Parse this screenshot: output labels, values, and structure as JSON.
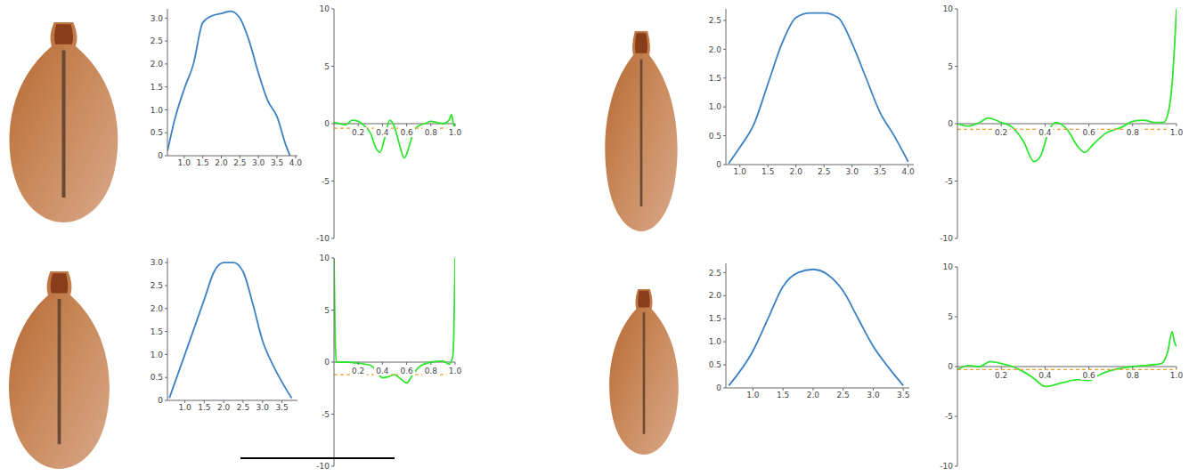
{
  "chart_data": [
    {
      "type": "line",
      "x": [
        0.55,
        0.75,
        1.0,
        1.25,
        1.5,
        1.75,
        2.0,
        2.25,
        2.5,
        2.75,
        3.0,
        3.25,
        3.5,
        3.75,
        3.85
      ],
      "series": [
        {
          "color": "#3a80c4",
          "values": [
            0.1,
            0.8,
            1.45,
            2.0,
            2.9,
            3.05,
            3.1,
            3.15,
            3.0,
            2.5,
            1.8,
            1.2,
            0.85,
            0.2,
            0.0
          ]
        }
      ],
      "xlim": [
        0.55,
        4.05
      ],
      "ylim": [
        0,
        3.2
      ],
      "xticks": [
        {
          "value": 1,
          "label": "1.0"
        },
        {
          "value": 1.5,
          "label": "1.5"
        },
        {
          "value": 2,
          "label": "2.0"
        },
        {
          "value": 2.5,
          "label": "2.5"
        },
        {
          "value": 3,
          "label": "3.0"
        },
        {
          "value": 3.5,
          "label": "3.5"
        },
        {
          "value": 4,
          "label": "4.0"
        }
      ],
      "yticks": [
        0,
        {
          "value": 0.5,
          "label": "0.5"
        },
        {
          "value": 1,
          "label": "1.0"
        },
        {
          "value": 1.5,
          "label": "1.5"
        },
        {
          "value": 2,
          "label": "2.0"
        },
        {
          "value": 2.5,
          "label": "2.5"
        },
        {
          "value": 3,
          "label": "3.0"
        }
      ]
    },
    {
      "type": "line",
      "x": [
        0,
        0.05,
        0.1,
        0.15,
        0.2,
        0.25,
        0.3,
        0.35,
        0.38,
        0.42,
        0.46,
        0.5,
        0.54,
        0.58,
        0.62,
        0.66,
        0.7,
        0.75,
        0.8,
        0.85,
        0.9,
        0.95,
        0.97,
        0.99,
        1.0
      ],
      "series": [
        {
          "color": "#2ee62e",
          "values": [
            0.1,
            0,
            -0.1,
            0.3,
            0.2,
            -0.2,
            -0.8,
            -2.2,
            -2.5,
            -1.2,
            0.3,
            -0.3,
            -1.8,
            -3.0,
            -2.0,
            -0.6,
            -0.2,
            0,
            0.2,
            0.1,
            0,
            0.3,
            0.8,
            -0.2,
            0
          ]
        },
        {
          "color": "#f0a030",
          "line_style": "dashed",
          "values": [
            -0.4,
            -0.4,
            -0.4,
            -0.4,
            -0.4,
            -0.4,
            -0.4,
            -0.4,
            -0.4,
            -0.4,
            -0.4,
            -0.4,
            -0.4,
            -0.4,
            -0.4,
            -0.4,
            -0.4,
            -0.4,
            -0.4,
            -0.4,
            -0.4,
            -0.4,
            -0.4,
            -0.4,
            -0.4
          ]
        }
      ],
      "xlim": [
        0,
        1
      ],
      "ylim": [
        -10,
        10
      ],
      "xticks": [
        0.2,
        0.4,
        0.6,
        0.8,
        {
          "value": 1,
          "label": "1.0"
        }
      ],
      "yticks": [
        -10,
        -5,
        0,
        5,
        10
      ]
    },
    {
      "type": "line",
      "x": [
        0.8,
        1.0,
        1.25,
        1.5,
        1.75,
        2.0,
        2.25,
        2.5,
        2.75,
        3.0,
        3.25,
        3.5,
        3.75,
        4.0
      ],
      "series": [
        {
          "color": "#3a80c4",
          "values": [
            0.02,
            0.3,
            0.7,
            1.4,
            2.1,
            2.55,
            2.63,
            2.63,
            2.55,
            2.1,
            1.5,
            0.9,
            0.5,
            0.05
          ]
        }
      ],
      "xlim": [
        0.75,
        4.1
      ],
      "ylim": [
        0,
        2.7
      ],
      "xticks": [
        {
          "value": 1,
          "label": "1.0"
        },
        {
          "value": 1.5,
          "label": "1.5"
        },
        {
          "value": 2,
          "label": "2.0"
        },
        {
          "value": 2.5,
          "label": "2.5"
        },
        {
          "value": 3,
          "label": "3.0"
        },
        {
          "value": 3.5,
          "label": "3.5"
        },
        {
          "value": 4,
          "label": "4.0"
        }
      ],
      "yticks": [
        0,
        {
          "value": 0.5,
          "label": "0.5"
        },
        {
          "value": 1,
          "label": "1.0"
        },
        {
          "value": 1.5,
          "label": "1.5"
        },
        {
          "value": 2,
          "label": "2.0"
        },
        {
          "value": 2.5,
          "label": "2.5"
        }
      ]
    },
    {
      "type": "line",
      "x": [
        0,
        0.05,
        0.1,
        0.14,
        0.2,
        0.25,
        0.3,
        0.35,
        0.38,
        0.42,
        0.45,
        0.5,
        0.55,
        0.58,
        0.62,
        0.68,
        0.75,
        0.8,
        0.85,
        0.9,
        0.94,
        0.96,
        0.98,
        1.0
      ],
      "series": [
        {
          "color": "#2ee62e",
          "values": [
            0,
            -0.2,
            0.1,
            0.5,
            0.1,
            -0.3,
            -1.5,
            -3.3,
            -2.8,
            -0.5,
            0.1,
            -0.5,
            -2.0,
            -2.5,
            -1.8,
            -0.8,
            -0.3,
            0.2,
            0.3,
            0.1,
            0.1,
            0.8,
            3.5,
            10
          ]
        },
        {
          "color": "#f0a030",
          "line_style": "dashed",
          "values": [
            -0.5,
            -0.5,
            -0.5,
            -0.5,
            -0.5,
            -0.5,
            -0.5,
            -0.5,
            -0.5,
            -0.5,
            -0.5,
            -0.5,
            -0.5,
            -0.5,
            -0.5,
            -0.5,
            -0.5,
            -0.5,
            -0.5,
            -0.5,
            -0.5,
            -0.5,
            -0.5,
            -0.5
          ]
        }
      ],
      "xlim": [
        0,
        1
      ],
      "ylim": [
        -10,
        10
      ],
      "xticks": [
        0.2,
        0.4,
        0.6,
        0.8,
        {
          "value": 1,
          "label": "1.0"
        }
      ],
      "yticks": [
        -10,
        -5,
        0,
        5,
        10
      ]
    },
    {
      "type": "line",
      "x": [
        0.6,
        1.0,
        1.5,
        1.75,
        2.0,
        2.25,
        2.5,
        2.75,
        3.0,
        3.25,
        3.5,
        3.75
      ],
      "series": [
        {
          "color": "#3a80c4",
          "values": [
            0.05,
            1.0,
            2.2,
            2.8,
            3.0,
            3.0,
            2.8,
            2.1,
            1.3,
            0.8,
            0.4,
            0.05
          ]
        }
      ],
      "xlim": [
        0.55,
        3.9
      ],
      "ylim": [
        0,
        3.1
      ],
      "xticks": [
        {
          "value": 1,
          "label": "1.0"
        },
        {
          "value": 1.5,
          "label": "1.5"
        },
        {
          "value": 2,
          "label": "2.0"
        },
        {
          "value": 2.5,
          "label": "2.5"
        },
        {
          "value": 3,
          "label": "3.0"
        },
        {
          "value": 3.5,
          "label": "3.5"
        }
      ],
      "yticks": [
        0,
        {
          "value": 0.5,
          "label": "0.5"
        },
        {
          "value": 1,
          "label": "1.0"
        },
        {
          "value": 1.5,
          "label": "1.5"
        },
        {
          "value": 2,
          "label": "2.0"
        },
        {
          "value": 2.5,
          "label": "2.5"
        },
        {
          "value": 3,
          "label": "3.0"
        }
      ]
    },
    {
      "type": "line",
      "x": [
        0,
        0.01,
        0.02,
        0.1,
        0.2,
        0.3,
        0.35,
        0.4,
        0.45,
        0.5,
        0.55,
        0.6,
        0.65,
        0.7,
        0.8,
        0.9,
        0.95,
        0.98,
        0.99,
        1.0
      ],
      "series": [
        {
          "color": "#2ee62e",
          "values": [
            10,
            2,
            0,
            0,
            -0.1,
            -0.3,
            -0.8,
            -1.5,
            -1.4,
            -1.2,
            -1.6,
            -2.0,
            -1.2,
            -0.5,
            0,
            0.1,
            -0.2,
            0.5,
            3,
            10
          ]
        },
        {
          "color": "#f0a030",
          "line_style": "dashed",
          "values": [
            -1.2,
            -1.2,
            -1.2,
            -1.2,
            -1.2,
            -1.2,
            -1.2,
            -1.2,
            -1.2,
            -1.2,
            -1.2,
            -1.2,
            -1.2,
            -1.2,
            -1.2,
            -1.2,
            -1.2,
            -1.2,
            -1.2,
            -1.2
          ]
        }
      ],
      "xlim": [
        0,
        1
      ],
      "ylim": [
        -10,
        10
      ],
      "xticks": [
        0.2,
        0.4,
        0.6,
        0.8,
        {
          "value": 1,
          "label": "1.0"
        }
      ],
      "yticks": [
        -10,
        -5,
        0,
        5,
        10
      ]
    },
    {
      "type": "line",
      "x": [
        0.6,
        1.0,
        1.25,
        1.5,
        1.75,
        2.0,
        2.25,
        2.5,
        2.75,
        3.0,
        3.25,
        3.5
      ],
      "series": [
        {
          "color": "#3a80c4",
          "values": [
            0.05,
            0.8,
            1.5,
            2.2,
            2.5,
            2.57,
            2.45,
            2.1,
            1.5,
            0.9,
            0.45,
            0.05
          ]
        }
      ],
      "xlim": [
        0.55,
        3.6
      ],
      "ylim": [
        0,
        2.7
      ],
      "xticks": [
        {
          "value": 1,
          "label": "1.0"
        },
        {
          "value": 1.5,
          "label": "1.5"
        },
        {
          "value": 2,
          "label": "2.0"
        },
        {
          "value": 2.5,
          "label": "2.5"
        },
        {
          "value": 3,
          "label": "3.0"
        },
        {
          "value": 3.5,
          "label": "3.5"
        }
      ],
      "yticks": [
        0,
        {
          "value": 0.5,
          "label": "0.5"
        },
        {
          "value": 1,
          "label": "1.0"
        },
        {
          "value": 1.5,
          "label": "1.5"
        },
        {
          "value": 2,
          "label": "2.0"
        },
        {
          "value": 2.5,
          "label": "2.5"
        }
      ]
    },
    {
      "type": "line",
      "x": [
        0,
        0.05,
        0.1,
        0.15,
        0.2,
        0.25,
        0.3,
        0.35,
        0.4,
        0.45,
        0.5,
        0.55,
        0.6,
        0.65,
        0.7,
        0.8,
        0.85,
        0.9,
        0.93,
        0.96,
        0.98,
        0.99,
        1.0
      ],
      "series": [
        {
          "color": "#2ee62e",
          "values": [
            -0.3,
            0.1,
            0,
            0.5,
            0.3,
            0,
            -0.5,
            -1.2,
            -2.0,
            -1.8,
            -1.5,
            -1.3,
            -1.4,
            -0.8,
            -0.4,
            0,
            0.1,
            0.2,
            0.3,
            1.5,
            3.5,
            2.5,
            2
          ]
        },
        {
          "color": "#f0a030",
          "line_style": "dashed",
          "values": [
            -0.3,
            -0.3,
            -0.3,
            -0.3,
            -0.3,
            -0.3,
            -0.3,
            -0.3,
            -0.3,
            -0.3,
            -0.3,
            -0.3,
            -0.3,
            -0.3,
            -0.3,
            -0.3,
            -0.3,
            -0.3,
            -0.3,
            -0.3,
            -0.3,
            -0.3,
            -0.3
          ]
        }
      ],
      "xlim": [
        0,
        1
      ],
      "ylim": [
        -10,
        10
      ],
      "xticks": [
        0.2,
        0.4,
        0.6,
        0.8,
        {
          "value": 1,
          "label": "1.0"
        }
      ],
      "yticks": [
        -10,
        -5,
        0,
        5,
        10
      ]
    }
  ]
}
